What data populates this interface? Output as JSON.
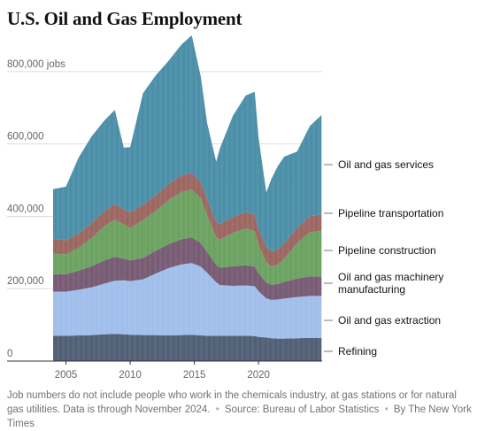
{
  "page": {
    "title": "U.S. Oil and Gas Employment",
    "note": "Job numbers do not include people who work in the chemicals industry, at gas stations or for natural gas utilities. Data is through November 2024.",
    "source": "Source: Bureau of Labor Statistics",
    "credit": "By The New York Times"
  },
  "chart_data": {
    "type": "area",
    "stacked": true,
    "title": "U.S. Oil and Gas Employment",
    "y_unit_suffix": " jobs",
    "ylim": [
      0,
      900000
    ],
    "y_ticks": [
      0,
      200000,
      400000,
      600000,
      800000
    ],
    "y_tick_labels": [
      "0",
      "200,000",
      "400,000",
      "600,000",
      "800,000 jobs"
    ],
    "xlim": [
      2004.0,
      2024.95
    ],
    "x_ticks": [
      2005,
      2010,
      2015,
      2020
    ],
    "x_tick_labels": [
      "2005",
      "2010",
      "2015",
      "2020"
    ],
    "grid": true,
    "legend_position": "right",
    "x": [
      2004.0,
      2005.0,
      2006.0,
      2007.0,
      2008.0,
      2008.8,
      2009.5,
      2010.0,
      2011.0,
      2012.0,
      2013.0,
      2014.0,
      2014.8,
      2015.5,
      2016.0,
      2016.7,
      2017.0,
      2018.0,
      2019.0,
      2019.7,
      2020.0,
      2020.6,
      2021.0,
      2021.5,
      2022.0,
      2023.0,
      2024.0,
      2024.9
    ],
    "series": [
      {
        "name": "Refining",
        "color": "#415169",
        "values": [
          70000,
          70000,
          71000,
          72000,
          74000,
          75000,
          74000,
          73000,
          72000,
          72000,
          71000,
          72000,
          73000,
          71000,
          70000,
          70000,
          70000,
          70000,
          70000,
          69000,
          67000,
          65000,
          63000,
          62000,
          62000,
          63000,
          64000,
          64000
        ]
      },
      {
        "name": "Oil and gas extraction",
        "color": "#98b9ea",
        "values": [
          122000,
          122000,
          126000,
          132000,
          140000,
          147000,
          149000,
          148000,
          154000,
          170000,
          186000,
          195000,
          198000,
          190000,
          174000,
          148000,
          140000,
          138000,
          139000,
          138000,
          126000,
          108000,
          106000,
          108000,
          111000,
          114000,
          116000,
          116000
        ]
      },
      {
        "name": "Oil and gas machinery manufacturing",
        "color": "#6b4c67",
        "values": [
          48000,
          48000,
          53000,
          58000,
          64000,
          66000,
          60000,
          57000,
          59000,
          63000,
          66000,
          70000,
          71000,
          65000,
          57000,
          48000,
          48000,
          54000,
          56000,
          54000,
          50000,
          44000,
          42000,
          43000,
          46000,
          51000,
          54000,
          54000
        ]
      },
      {
        "name": "Pipeline construction",
        "color": "#5e9a53",
        "values": [
          57000,
          55000,
          63000,
          78000,
          95000,
          103000,
          94000,
          90000,
          104000,
          110000,
          122000,
          130000,
          132000,
          124000,
          102000,
          76000,
          78000,
          92000,
          102000,
          98000,
          78000,
          56000,
          50000,
          54000,
          64000,
          98000,
          122000,
          126000
        ]
      },
      {
        "name": "Pipeline transportation",
        "color": "#935953",
        "values": [
          40000,
          39000,
          40000,
          41000,
          42000,
          43000,
          43000,
          43000,
          43000,
          44000,
          45000,
          46000,
          46000,
          45000,
          44000,
          43000,
          43000,
          44000,
          45000,
          45000,
          44000,
          43000,
          42000,
          42000,
          42000,
          43000,
          44000,
          45000
        ]
      },
      {
        "name": "Oil and gas services",
        "color": "#3a85a0",
        "values": [
          138000,
          148000,
          210000,
          240000,
          250000,
          260000,
          170000,
          180000,
          308000,
          331000,
          340000,
          362000,
          380000,
          291000,
          210000,
          166000,
          210000,
          280000,
          322000,
          340000,
          252000,
          150000,
          200000,
          230000,
          240000,
          210000,
          250000,
          275000
        ]
      }
    ],
    "series_labels": [
      [
        "Oil and gas services"
      ],
      [
        "Pipeline transportation"
      ],
      [
        "Pipeline construction"
      ],
      [
        "Oil and gas machinery",
        "manufacturing"
      ],
      [
        "Oil and gas extraction"
      ],
      [
        "Refining"
      ]
    ]
  }
}
